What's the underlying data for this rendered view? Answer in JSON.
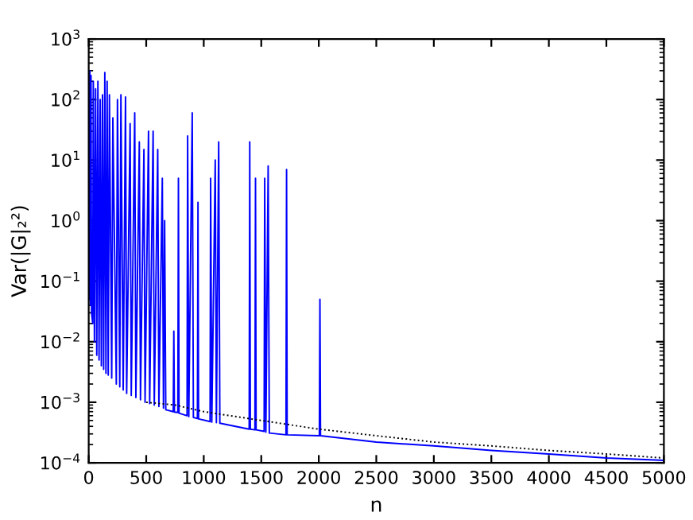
{
  "chart_data": {
    "type": "line",
    "xlabel": "n",
    "ylabel": "Var(|G|₂²)",
    "log": "y",
    "xlim": [
      0,
      5000
    ],
    "ylim": [
      0.0001,
      1000
    ],
    "xticks": [
      0,
      500,
      1000,
      1500,
      2000,
      2500,
      3000,
      3500,
      4000,
      4500,
      5000
    ],
    "yticks": [
      {
        "value": 0.0001,
        "label": "10$^{−4}$"
      },
      {
        "value": 0.001,
        "label": "10$^{−3}$"
      },
      {
        "value": 0.01,
        "label": "10$^{−2}$"
      },
      {
        "value": 0.1,
        "label": "10$^{−1}$"
      },
      {
        "value": 1,
        "label": "10$^{0}$"
      },
      {
        "value": 10,
        "label": "10$^{1}$"
      },
      {
        "value": 100,
        "label": "10$^{2}$"
      },
      {
        "value": 1000,
        "label": "10$^{3}$"
      }
    ],
    "grid": false,
    "series": [
      {
        "color": "#0000ff",
        "line_style": "solid",
        "x": [
          5,
          10,
          15,
          20,
          25,
          35,
          40,
          50,
          60,
          70,
          80,
          90,
          100,
          110,
          120,
          130,
          140,
          150,
          160,
          170,
          180,
          200,
          210,
          240,
          250,
          270,
          280,
          300,
          320,
          330,
          360,
          370,
          400,
          410,
          440,
          450,
          480,
          490,
          520,
          530,
          560,
          570,
          600,
          610,
          640,
          650,
          660,
          670,
          735,
          740,
          745,
          775,
          780,
          785,
          855,
          860,
          870,
          900,
          910,
          945,
          950,
          955,
          1055,
          1060,
          1070,
          1100,
          1110,
          1130,
          1140,
          1395,
          1400,
          1405,
          1445,
          1450,
          1455,
          1525,
          1530,
          1540,
          1560,
          1570,
          1715,
          1720,
          1725,
          2005,
          2010,
          2015,
          2500,
          3000,
          3500,
          4000,
          4500,
          5000
        ],
        "values": [
          0.05,
          300,
          0.04,
          250,
          0.03,
          0.02,
          200,
          0.01,
          150,
          0.006,
          200,
          0.005,
          100,
          0.004,
          120,
          0.0035,
          280,
          0.003,
          200,
          0.0028,
          120,
          0.0025,
          50,
          0.002,
          100,
          0.0018,
          120,
          0.0016,
          110,
          0.0014,
          40,
          0.0013,
          60,
          0.0012,
          20,
          0.0011,
          15,
          0.001,
          30,
          0.00095,
          30,
          0.0009,
          15,
          0.00085,
          5,
          0.0008,
          1,
          0.00075,
          0.0007,
          0.015,
          0.00069,
          0.00068,
          5,
          0.00066,
          0.0006,
          25,
          0.00058,
          60,
          0.00056,
          0.00054,
          2,
          0.00053,
          0.00048,
          5,
          0.00047,
          10,
          0.00046,
          20,
          0.00045,
          0.00036,
          20,
          0.00036,
          0.00035,
          5,
          0.00035,
          0.00033,
          5,
          0.00032,
          8,
          0.00031,
          0.00029,
          7,
          0.00029,
          0.00028,
          0.05,
          0.00028,
          0.00022,
          0.00019,
          0.00016,
          0.00014,
          0.00012,
          0.00011
        ]
      },
      {
        "color": "#000000",
        "line_style": "dotted",
        "x": [
          500,
          750,
          1000,
          1500,
          2000,
          2500,
          3000,
          3500,
          4000,
          4500,
          5000
        ],
        "values": [
          0.001,
          0.0009,
          0.0007,
          0.0005,
          0.00036,
          0.00028,
          0.00022,
          0.00019,
          0.00016,
          0.00014,
          0.00012
        ]
      }
    ]
  }
}
